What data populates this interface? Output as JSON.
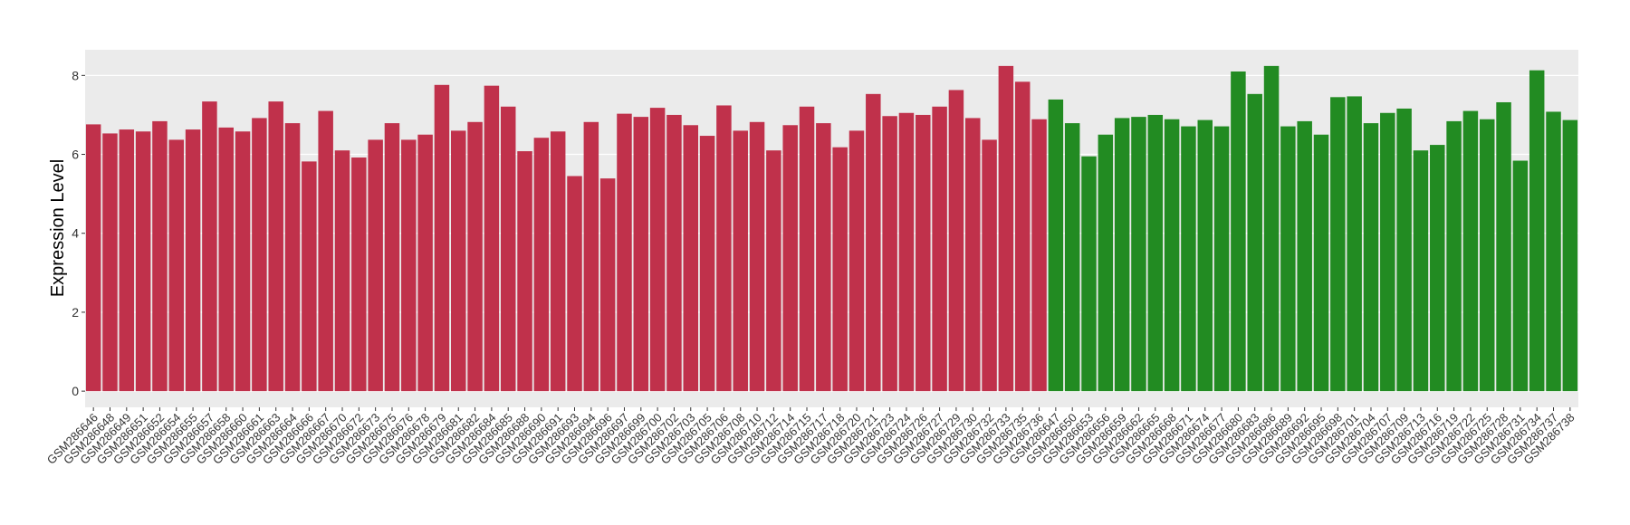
{
  "chart_data": {
    "type": "bar",
    "y_label": "Expression Level",
    "categories": [
      "GSM286646",
      "GSM286648",
      "GSM286649",
      "GSM286651",
      "GSM286652",
      "GSM286654",
      "GSM286655",
      "GSM286657",
      "GSM286658",
      "GSM286660",
      "GSM286661",
      "GSM286663",
      "GSM286664",
      "GSM286666",
      "GSM286667",
      "GSM286670",
      "GSM286672",
      "GSM286673",
      "GSM286675",
      "GSM286676",
      "GSM286678",
      "GSM286679",
      "GSM286681",
      "GSM286682",
      "GSM286684",
      "GSM286685",
      "GSM286688",
      "GSM286690",
      "GSM286691",
      "GSM286693",
      "GSM286694",
      "GSM286696",
      "GSM286697",
      "GSM286699",
      "GSM286700",
      "GSM286702",
      "GSM286703",
      "GSM286705",
      "GSM286706",
      "GSM286708",
      "GSM286710",
      "GSM286712",
      "GSM286714",
      "GSM286715",
      "GSM286717",
      "GSM286718",
      "GSM286720",
      "GSM286721",
      "GSM286723",
      "GSM286724",
      "GSM286726",
      "GSM286727",
      "GSM286729",
      "GSM286730",
      "GSM286732",
      "GSM286733",
      "GSM286735",
      "GSM286736",
      "GSM286647",
      "GSM286650",
      "GSM286653",
      "GSM286656",
      "GSM286659",
      "GSM286662",
      "GSM286665",
      "GSM286668",
      "GSM286671",
      "GSM286674",
      "GSM286677",
      "GSM286680",
      "GSM286683",
      "GSM286686",
      "GSM286689",
      "GSM286692",
      "GSM286695",
      "GSM286698",
      "GSM286701",
      "GSM286704",
      "GSM286707",
      "GSM286709",
      "GSM286713",
      "GSM286716",
      "GSM286719",
      "GSM286722",
      "GSM286725",
      "GSM286728",
      "GSM286731",
      "GSM286734",
      "GSM286737",
      "GSM286738"
    ],
    "values": [
      6.76,
      6.53,
      6.63,
      6.58,
      6.84,
      6.37,
      6.63,
      7.34,
      6.68,
      6.58,
      6.92,
      7.34,
      6.79,
      5.82,
      7.1,
      6.1,
      5.92,
      6.37,
      6.79,
      6.37,
      6.5,
      7.76,
      6.6,
      6.82,
      7.74,
      7.21,
      6.08,
      6.42,
      6.58,
      5.45,
      6.82,
      5.39,
      7.03,
      6.95,
      7.18,
      7.0,
      6.74,
      6.47,
      7.24,
      6.6,
      6.82,
      6.1,
      6.74,
      7.21,
      6.79,
      6.18,
      6.6,
      7.53,
      6.97,
      7.05,
      7.0,
      7.21,
      7.63,
      6.92,
      6.37,
      8.24,
      7.84,
      6.89,
      7.39,
      6.79,
      5.95,
      6.5,
      6.92,
      6.95,
      7.0,
      6.89,
      6.71,
      6.87,
      6.71,
      8.1,
      7.53,
      8.24,
      6.71,
      6.84,
      6.5,
      7.45,
      7.47,
      6.79,
      7.05,
      7.16,
      6.1,
      6.24,
      6.84,
      7.1,
      6.89,
      7.32,
      5.84,
      8.13,
      7.08,
      6.87
    ],
    "bar_colors": [
      "#c0314b",
      "#c0314b",
      "#c0314b",
      "#c0314b",
      "#c0314b",
      "#c0314b",
      "#c0314b",
      "#c0314b",
      "#c0314b",
      "#c0314b",
      "#c0314b",
      "#c0314b",
      "#c0314b",
      "#c0314b",
      "#c0314b",
      "#c0314b",
      "#c0314b",
      "#c0314b",
      "#c0314b",
      "#c0314b",
      "#c0314b",
      "#c0314b",
      "#c0314b",
      "#c0314b",
      "#c0314b",
      "#c0314b",
      "#c0314b",
      "#c0314b",
      "#c0314b",
      "#c0314b",
      "#c0314b",
      "#c0314b",
      "#c0314b",
      "#c0314b",
      "#c0314b",
      "#c0314b",
      "#c0314b",
      "#c0314b",
      "#c0314b",
      "#c0314b",
      "#c0314b",
      "#c0314b",
      "#c0314b",
      "#c0314b",
      "#c0314b",
      "#c0314b",
      "#c0314b",
      "#c0314b",
      "#c0314b",
      "#c0314b",
      "#c0314b",
      "#c0314b",
      "#c0314b",
      "#c0314b",
      "#c0314b",
      "#c0314b",
      "#c0314b",
      "#c0314b",
      "#228b22",
      "#228b22",
      "#228b22",
      "#228b22",
      "#228b22",
      "#228b22",
      "#228b22",
      "#228b22",
      "#228b22",
      "#228b22",
      "#228b22",
      "#228b22",
      "#228b22",
      "#228b22",
      "#228b22",
      "#228b22",
      "#228b22",
      "#228b22",
      "#228b22",
      "#228b22",
      "#228b22",
      "#228b22",
      "#228b22",
      "#228b22",
      "#228b22",
      "#228b22",
      "#228b22",
      "#228b22",
      "#228b22",
      "#228b22",
      "#228b22",
      "#228b22"
    ],
    "ylim": [
      -0.41,
      8.65
    ],
    "yticks": [
      0,
      2,
      4,
      6,
      8
    ],
    "grid": true,
    "panel_color": "#ebebeb"
  }
}
